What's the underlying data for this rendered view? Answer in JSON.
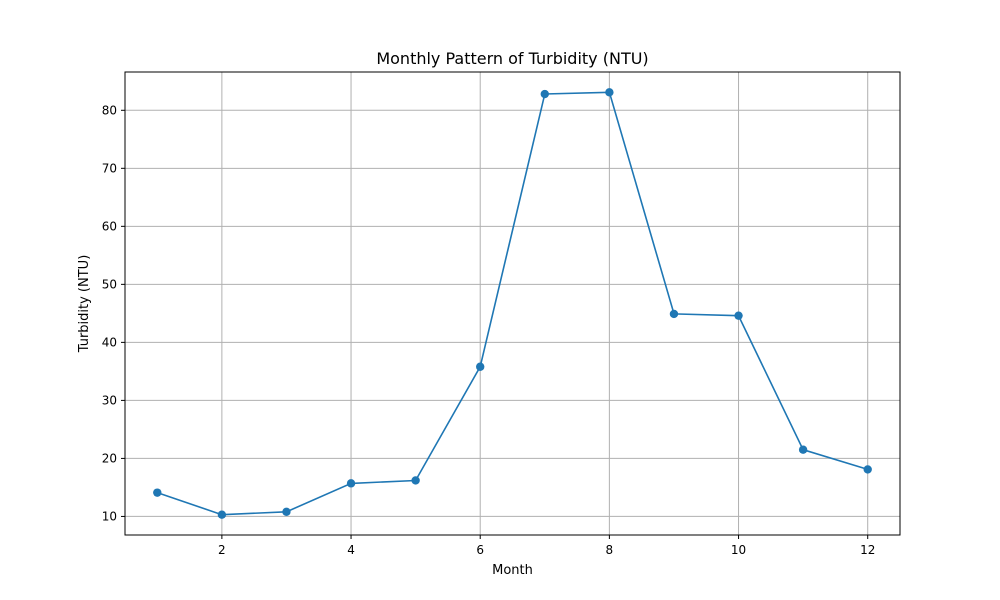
{
  "chart_data": {
    "type": "line",
    "title": "Monthly Pattern of Turbidity (NTU)",
    "xlabel": "Month",
    "ylabel": "Turbidity (NTU)",
    "xlim": [
      0.5,
      12.5
    ],
    "ylim": [
      6.8,
      86.6
    ],
    "xticks": [
      2,
      4,
      6,
      8,
      10,
      12
    ],
    "yticks": [
      10,
      20,
      30,
      40,
      50,
      60,
      70,
      80
    ],
    "grid": true,
    "series": [
      {
        "color": "#1f77b4",
        "marker": "circle",
        "x": [
          1,
          2,
          3,
          4,
          5,
          6,
          7,
          8,
          9,
          10,
          11,
          12
        ],
        "values": [
          14.1,
          10.3,
          10.8,
          15.7,
          16.2,
          35.8,
          82.8,
          83.1,
          44.9,
          44.6,
          21.5,
          18.1
        ]
      }
    ]
  }
}
